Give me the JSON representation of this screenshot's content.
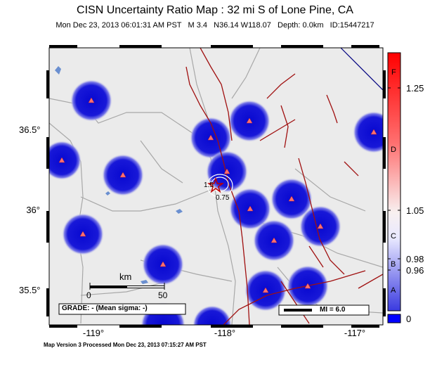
{
  "header": {
    "title": "CISN Uncertainty Ratio Map : 32 mi S of Lone Pine, CA",
    "subtitle": "Mon Dec 23, 2013 06:01:31 AM PST   M 3.4   N36.14 W118.07   Depth: 0.0km   ID:15447217"
  },
  "axes": {
    "lat_labels": [
      "36.5°",
      "36°",
      "35.5°"
    ],
    "lon_labels": [
      "-119°",
      "-118°",
      "-117°"
    ]
  },
  "scale_bar": {
    "unit": "km",
    "start": "0",
    "end": "50"
  },
  "grade_box": "GRADE: - (Mean sigma: -)",
  "mi_legend": "MI = 6.0",
  "contour_labels": [
    "1.5",
    "0.75"
  ],
  "colorbar": {
    "grades": [
      "F",
      "D",
      "C",
      "B",
      "A"
    ],
    "values": [
      "1.25",
      "1.05",
      "0.98",
      "0.96",
      "0"
    ]
  },
  "footer": "Map Version 3 Processed Mon Dec 23, 2013 07:15:27 AM PST",
  "colors": {
    "station_blue": "#1010d8",
    "fault_red": "#a01010",
    "map_bg": "#ebebeb",
    "road": "#a0a0a0",
    "water": "#6a8fd0"
  }
}
